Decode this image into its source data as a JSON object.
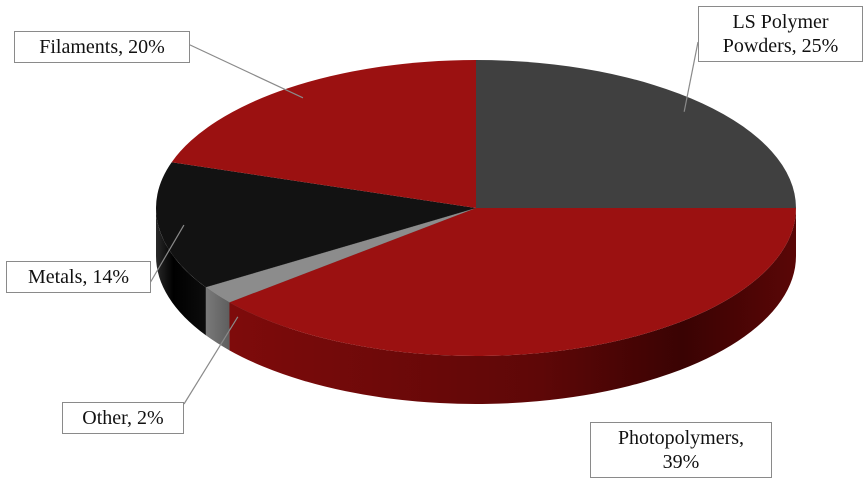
{
  "chart_data": {
    "type": "pie",
    "style": "3d",
    "slices": [
      {
        "name": "LS Polymer Powders",
        "value": 25,
        "color": "#404040",
        "label_lines": [
          "LS Polymer",
          "Powders, 25%"
        ]
      },
      {
        "name": "Photopolymers",
        "value": 39,
        "color": "#9b1111",
        "label_lines": [
          "Photopolymers,",
          "39%"
        ]
      },
      {
        "name": "Other",
        "value": 2,
        "color": "#8c8c8c",
        "label_lines": [
          "Other, 2%"
        ]
      },
      {
        "name": "Metals",
        "value": 14,
        "color": "#121212",
        "label_lines": [
          "Metals, 14%"
        ]
      },
      {
        "name": "Filaments",
        "value": 20,
        "color": "#9b1111",
        "label_lines": [
          "Filaments, 20%"
        ]
      }
    ]
  }
}
